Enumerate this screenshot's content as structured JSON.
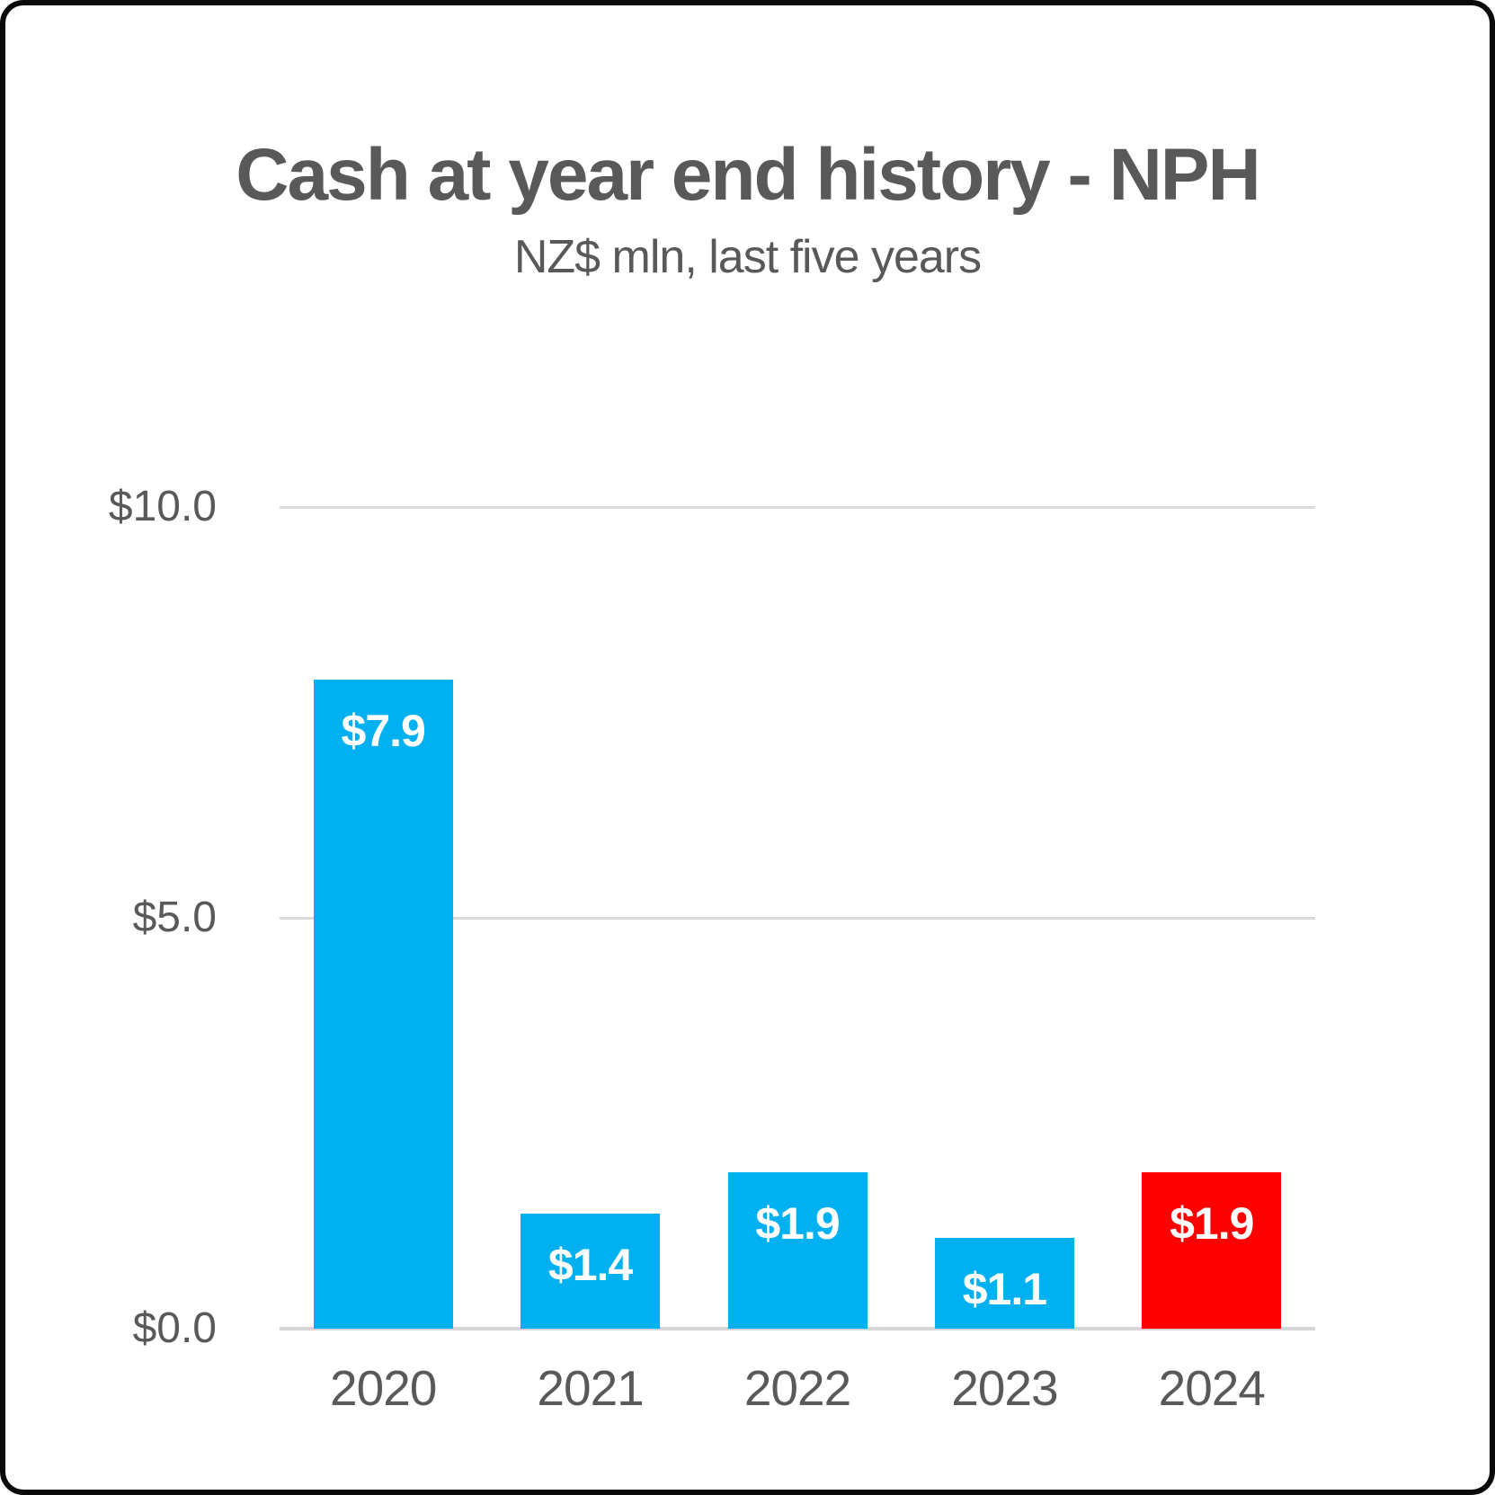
{
  "chart_data": {
    "type": "bar",
    "title": "Cash at year end history - NPH",
    "subtitle": "NZ$ mln, last five years",
    "categories": [
      "2020",
      "2021",
      "2022",
      "2023",
      "2024"
    ],
    "values": [
      7.9,
      1.4,
      1.9,
      1.1,
      1.9
    ],
    "bar_labels": [
      "$7.9",
      "$1.4",
      "$1.9",
      "$1.1",
      "$1.9"
    ],
    "bar_colors": [
      "#00B0F0",
      "#00B0F0",
      "#00B0F0",
      "#00B0F0",
      "#FF0000"
    ],
    "xlabel": "",
    "ylabel": "",
    "ylim": [
      0,
      10
    ],
    "yticks": [
      {
        "label": "$0.0",
        "value": 0
      },
      {
        "label": "$5.0",
        "value": 5
      },
      {
        "label": "$10.0",
        "value": 10
      }
    ],
    "grid": true,
    "legend": false,
    "colors": {
      "text": "#595959",
      "gridline": "#D9D9D9",
      "axis_line": "#D6D6D6",
      "bar_label_text": "#FFFFFF",
      "frame_border": "#0A0A0A",
      "background": "#FFFFFF"
    }
  }
}
